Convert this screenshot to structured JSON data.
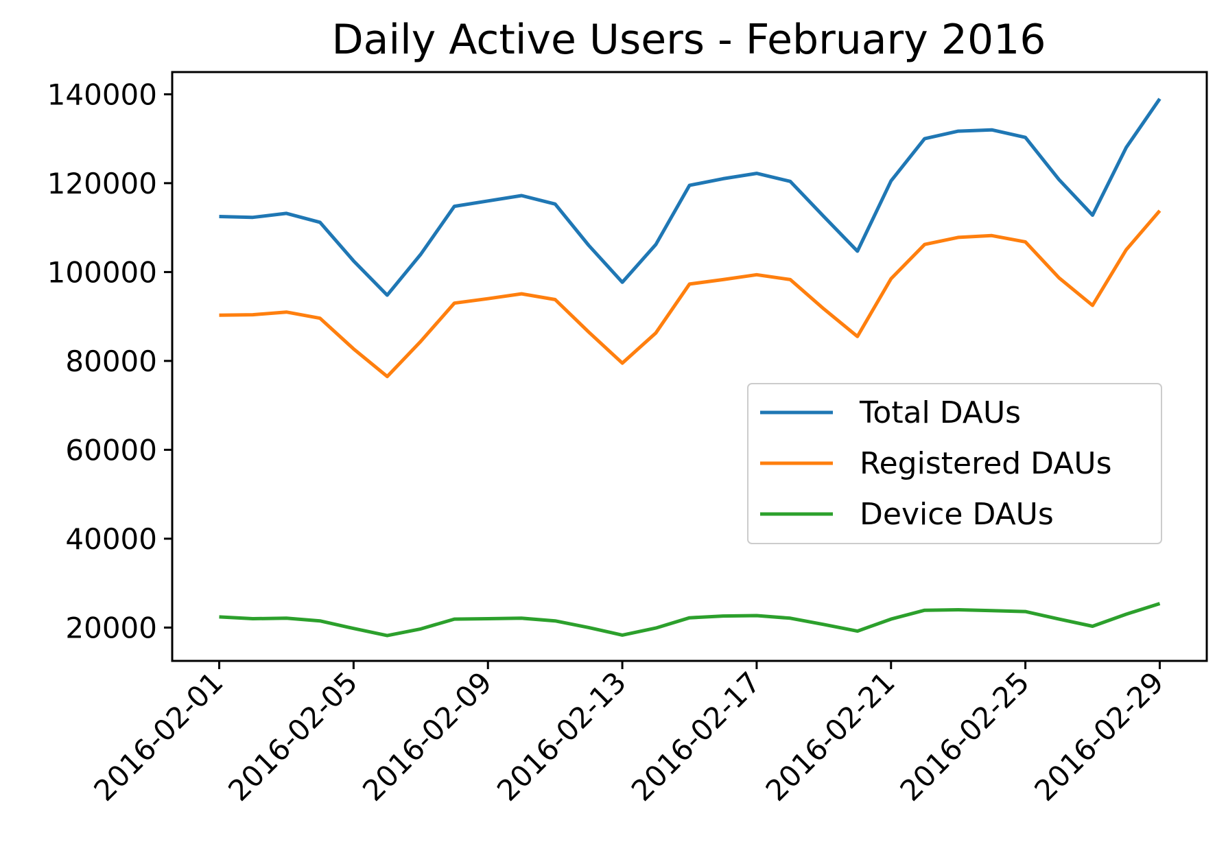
{
  "chart_data": {
    "type": "line",
    "title": "Daily Active Users - February 2016",
    "xlabel": "",
    "ylabel": "",
    "x": [
      "2016-02-01",
      "2016-02-02",
      "2016-02-03",
      "2016-02-04",
      "2016-02-05",
      "2016-02-06",
      "2016-02-07",
      "2016-02-08",
      "2016-02-09",
      "2016-02-10",
      "2016-02-11",
      "2016-02-12",
      "2016-02-13",
      "2016-02-14",
      "2016-02-15",
      "2016-02-16",
      "2016-02-17",
      "2016-02-18",
      "2016-02-19",
      "2016-02-20",
      "2016-02-21",
      "2016-02-22",
      "2016-02-23",
      "2016-02-24",
      "2016-02-25",
      "2016-02-26",
      "2016-02-27",
      "2016-02-28",
      "2016-02-29"
    ],
    "xticks": [
      "2016-02-01",
      "2016-02-05",
      "2016-02-09",
      "2016-02-13",
      "2016-02-17",
      "2016-02-21",
      "2016-02-25",
      "2016-02-29"
    ],
    "ylim": [
      12500,
      145000
    ],
    "yticks": [
      20000,
      40000,
      60000,
      80000,
      100000,
      120000,
      140000
    ],
    "grid": false,
    "legend_position": "center-right",
    "series": [
      {
        "name": "Total DAUs",
        "color": "#1f77b4",
        "values": [
          112500,
          112300,
          113200,
          111200,
          102500,
          94800,
          104000,
          114800,
          116000,
          117200,
          115300,
          106000,
          97700,
          106200,
          119500,
          121000,
          122200,
          120400,
          112500,
          104700,
          120500,
          130000,
          131700,
          132000,
          130300,
          120800,
          112800,
          128000,
          139000
        ]
      },
      {
        "name": "Registered DAUs",
        "color": "#ff7f0e",
        "values": [
          90300,
          90400,
          91000,
          89600,
          82700,
          76500,
          84400,
          93000,
          94000,
          95100,
          93800,
          86500,
          79500,
          86300,
          97300,
          98300,
          99400,
          98300,
          91700,
          85500,
          98500,
          106200,
          107800,
          108200,
          106800,
          98700,
          92500,
          105000,
          113800
        ]
      },
      {
        "name": "Device DAUs",
        "color": "#2ca02c",
        "values": [
          22400,
          22000,
          22100,
          21500,
          19800,
          18200,
          19700,
          21900,
          22000,
          22100,
          21500,
          20000,
          18300,
          19900,
          22200,
          22600,
          22700,
          22100,
          20700,
          19200,
          21900,
          23900,
          24000,
          23800,
          23600,
          21900,
          20300,
          23000,
          25400
        ]
      }
    ]
  }
}
